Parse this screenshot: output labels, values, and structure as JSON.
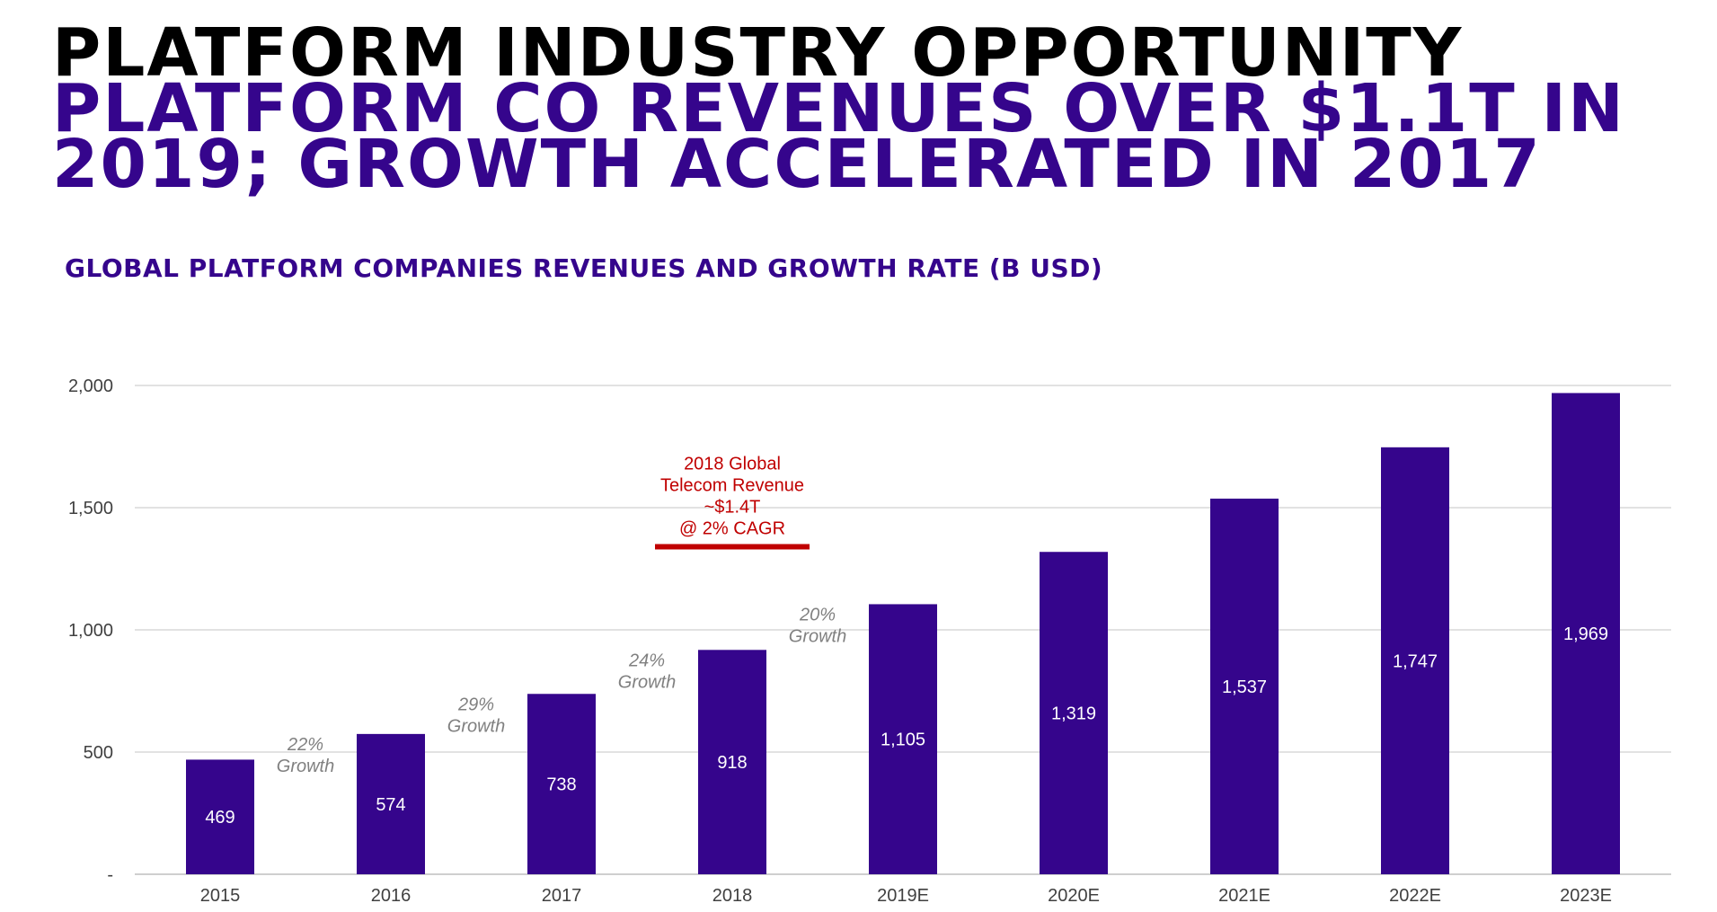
{
  "title": {
    "line1": "PLATFORM INDUSTRY OPPORTUNITY",
    "line2": "PLATFORM CO REVENUES OVER $1.1T IN",
    "line3": "2019; GROWTH ACCELERATED IN 2017"
  },
  "colors": {
    "bar": "#35058c",
    "title_accent": "#35058c",
    "annotation": "#c00000",
    "growth_text": "#808080",
    "grid": "#d9d9d9"
  },
  "chart_data": {
    "type": "bar",
    "title": "GLOBAL PLATFORM COMPANIES REVENUES AND GROWTH RATE (B USD)",
    "xlabel": "",
    "ylabel": "",
    "ylim": [
      0,
      2000
    ],
    "yticks": [
      0,
      500,
      1000,
      1500,
      2000
    ],
    "ytick_labels": [
      "-",
      "500",
      "1,000",
      "1,500",
      "2,000"
    ],
    "grid": true,
    "categories": [
      "2015",
      "2016",
      "2017",
      "2018",
      "2019E",
      "2020E",
      "2021E",
      "2022E",
      "2023E"
    ],
    "values": [
      469,
      574,
      738,
      918,
      1105,
      1319,
      1537,
      1747,
      1969
    ],
    "value_labels": [
      "469",
      "574",
      "738",
      "918",
      "1,105",
      "1,319",
      "1,537",
      "1,747",
      "1,969"
    ],
    "growth_annotations": [
      {
        "between": [
          "2015",
          "2016"
        ],
        "pct": "22%",
        "word": "Growth"
      },
      {
        "between": [
          "2016",
          "2017"
        ],
        "pct": "29%",
        "word": "Growth"
      },
      {
        "between": [
          "2017",
          "2018"
        ],
        "pct": "24%",
        "word": "Growth"
      },
      {
        "between": [
          "2018",
          "2019E"
        ],
        "pct": "20%",
        "word": "Growth"
      }
    ],
    "callout": {
      "lines": [
        "2018 Global",
        "Telecom Revenue",
        "~$1.4T",
        "@ 2% CAGR"
      ],
      "value": 1340,
      "category": "2018"
    }
  }
}
